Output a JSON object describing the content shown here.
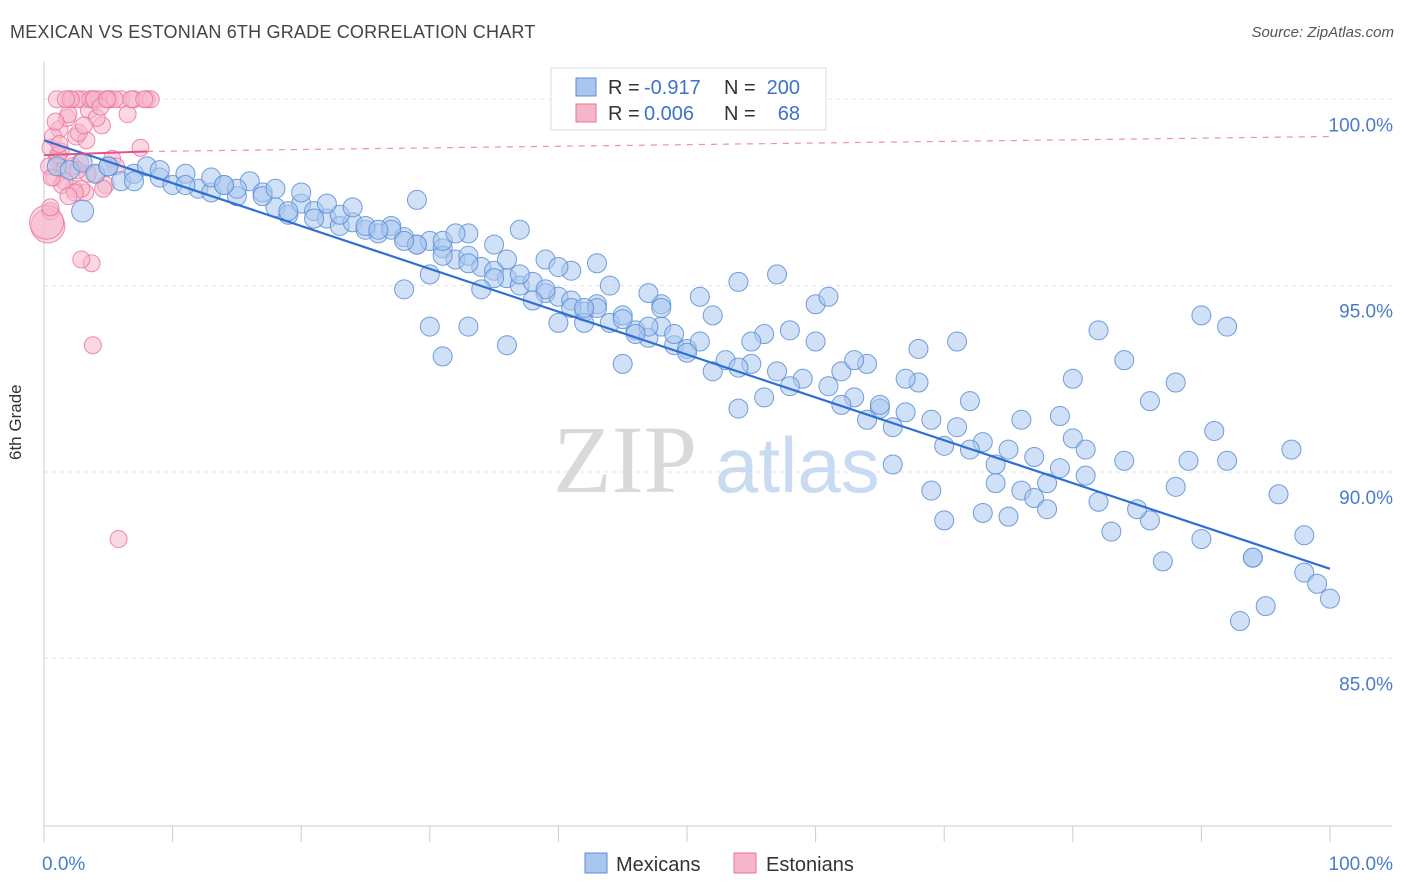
{
  "title": "MEXICAN VS ESTONIAN 6TH GRADE CORRELATION CHART",
  "source": "Source: ZipAtlas.com",
  "watermark": {
    "zip": "ZIP",
    "atlas": "atlas"
  },
  "colors": {
    "blue": "#5b8ed6",
    "blue_fill": "#a9c7ee",
    "pink": "#e8729a",
    "pink_fill": "#f6b6ca",
    "axis_text": "#4a7cc9"
  },
  "chart_data": {
    "type": "scatter",
    "title": "MEXICAN VS ESTONIAN 6TH GRADE CORRELATION CHART",
    "xlabel": "",
    "ylabel": "6th Grade",
    "xlim": [
      0,
      100
    ],
    "ylim": [
      80.5,
      101.0
    ],
    "x_tick_labels": [
      "0.0%",
      "100.0%"
    ],
    "y_ticks": [
      85,
      90,
      95,
      100
    ],
    "y_tick_labels": [
      "85.0%",
      "90.0%",
      "95.0%",
      "100.0%"
    ],
    "grid": true,
    "legend_position": "top-center",
    "series": [
      {
        "name": "Mexicans",
        "R": "-0.917",
        "N": "200",
        "trend": {
          "x0": 0,
          "y0": 98.9,
          "x1": 100,
          "y1": 87.4
        },
        "points": [
          [
            1,
            98.2
          ],
          [
            2,
            98.1
          ],
          [
            3,
            98.3
          ],
          [
            4,
            98.0
          ],
          [
            5,
            98.2
          ],
          [
            6,
            97.8
          ],
          [
            7,
            98.0
          ],
          [
            8,
            98.2
          ],
          [
            9,
            97.9
          ],
          [
            10,
            97.7
          ],
          [
            11,
            98.0
          ],
          [
            12,
            97.6
          ],
          [
            13,
            97.5
          ],
          [
            14,
            97.7
          ],
          [
            15,
            97.4
          ],
          [
            16,
            97.8
          ],
          [
            17,
            97.5
          ],
          [
            18,
            97.1
          ],
          [
            19,
            96.9
          ],
          [
            20,
            97.2
          ],
          [
            21,
            97.0
          ],
          [
            22,
            96.8
          ],
          [
            23,
            96.6
          ],
          [
            24,
            96.7
          ],
          [
            25,
            96.5
          ],
          [
            26,
            96.4
          ],
          [
            27,
            96.6
          ],
          [
            28,
            96.3
          ],
          [
            29,
            96.1
          ],
          [
            30,
            96.2
          ],
          [
            31,
            96.0
          ],
          [
            32,
            95.7
          ],
          [
            33,
            95.8
          ],
          [
            34,
            95.5
          ],
          [
            35,
            95.4
          ],
          [
            36,
            95.2
          ],
          [
            37,
            95.0
          ],
          [
            38,
            95.1
          ],
          [
            39,
            94.8
          ],
          [
            40,
            94.7
          ],
          [
            41,
            94.6
          ],
          [
            42,
            94.3
          ],
          [
            43,
            94.5
          ],
          [
            44,
            94.0
          ],
          [
            45,
            94.2
          ],
          [
            46,
            93.8
          ],
          [
            47,
            93.6
          ],
          [
            48,
            93.9
          ],
          [
            49,
            93.4
          ],
          [
            50,
            93.3
          ],
          [
            3,
            97.0
          ],
          [
            5,
            98.2
          ],
          [
            7,
            97.8
          ],
          [
            9,
            98.1
          ],
          [
            11,
            97.7
          ],
          [
            13,
            97.9
          ],
          [
            15,
            97.6
          ],
          [
            17,
            97.4
          ],
          [
            19,
            97.0
          ],
          [
            21,
            96.8
          ],
          [
            23,
            96.9
          ],
          [
            25,
            96.6
          ],
          [
            27,
            96.5
          ],
          [
            29,
            96.1
          ],
          [
            31,
            95.8
          ],
          [
            33,
            95.6
          ],
          [
            35,
            95.2
          ],
          [
            37,
            95.3
          ],
          [
            39,
            94.9
          ],
          [
            41,
            94.4
          ],
          [
            43,
            94.4
          ],
          [
            45,
            94.1
          ],
          [
            47,
            93.9
          ],
          [
            49,
            93.7
          ],
          [
            51,
            93.5
          ],
          [
            53,
            93.0
          ],
          [
            55,
            92.9
          ],
          [
            57,
            92.7
          ],
          [
            59,
            92.5
          ],
          [
            61,
            92.3
          ],
          [
            63,
            92.0
          ],
          [
            65,
            91.7
          ],
          [
            67,
            91.6
          ],
          [
            69,
            91.4
          ],
          [
            71,
            91.2
          ],
          [
            73,
            90.8
          ],
          [
            75,
            90.6
          ],
          [
            77,
            90.4
          ],
          [
            79,
            90.1
          ],
          [
            81,
            89.9
          ],
          [
            22,
            97.2
          ],
          [
            26,
            96.5
          ],
          [
            29,
            97.3
          ],
          [
            31,
            96.2
          ],
          [
            33,
            96.4
          ],
          [
            35,
            96.1
          ],
          [
            37,
            96.5
          ],
          [
            39,
            95.7
          ],
          [
            41,
            95.4
          ],
          [
            43,
            95.6
          ],
          [
            14,
            97.7
          ],
          [
            18,
            97.6
          ],
          [
            20,
            97.5
          ],
          [
            24,
            97.1
          ],
          [
            28,
            96.2
          ],
          [
            32,
            96.4
          ],
          [
            36,
            95.7
          ],
          [
            40,
            95.5
          ],
          [
            44,
            95.0
          ],
          [
            48,
            94.5
          ],
          [
            52,
            94.2
          ],
          [
            56,
            93.7
          ],
          [
            60,
            93.5
          ],
          [
            64,
            92.9
          ],
          [
            68,
            92.4
          ],
          [
            72,
            91.9
          ],
          [
            76,
            91.4
          ],
          [
            80,
            90.9
          ],
          [
            84,
            90.3
          ],
          [
            88,
            89.6
          ],
          [
            30,
            95.3
          ],
          [
            34,
            94.9
          ],
          [
            38,
            94.6
          ],
          [
            42,
            94.0
          ],
          [
            46,
            93.7
          ],
          [
            50,
            93.2
          ],
          [
            54,
            92.8
          ],
          [
            58,
            92.3
          ],
          [
            62,
            91.8
          ],
          [
            66,
            91.2
          ],
          [
            70,
            90.7
          ],
          [
            74,
            90.2
          ],
          [
            78,
            89.7
          ],
          [
            82,
            89.2
          ],
          [
            86,
            88.7
          ],
          [
            90,
            88.2
          ],
          [
            94,
            87.7
          ],
          [
            98,
            87.3
          ],
          [
            28,
            94.9
          ],
          [
            30,
            93.9
          ],
          [
            31,
            93.1
          ],
          [
            33,
            93.9
          ],
          [
            36,
            93.4
          ],
          [
            40,
            94.0
          ],
          [
            42,
            94.4
          ],
          [
            45,
            92.9
          ],
          [
            47,
            94.8
          ],
          [
            48,
            94.4
          ],
          [
            51,
            94.7
          ],
          [
            52,
            92.7
          ],
          [
            54,
            91.7
          ],
          [
            54,
            95.1
          ],
          [
            55,
            93.5
          ],
          [
            56,
            92.0
          ],
          [
            57,
            95.3
          ],
          [
            58,
            93.8
          ],
          [
            60,
            94.5
          ],
          [
            61,
            94.7
          ],
          [
            62,
            92.7
          ],
          [
            63,
            93.0
          ],
          [
            64,
            91.4
          ],
          [
            65,
            91.8
          ],
          [
            66,
            90.2
          ],
          [
            67,
            92.5
          ],
          [
            68,
            93.3
          ],
          [
            69,
            89.5
          ],
          [
            70,
            88.7
          ],
          [
            71,
            93.5
          ],
          [
            72,
            90.6
          ],
          [
            73,
            88.9
          ],
          [
            74,
            89.7
          ],
          [
            75,
            88.8
          ],
          [
            76,
            89.5
          ],
          [
            77,
            89.3
          ],
          [
            78,
            89.0
          ],
          [
            79,
            91.5
          ],
          [
            80,
            92.5
          ],
          [
            81,
            90.6
          ],
          [
            82,
            93.8
          ],
          [
            83,
            88.4
          ],
          [
            84,
            93.0
          ],
          [
            85,
            89.0
          ],
          [
            86,
            91.9
          ],
          [
            87,
            87.6
          ],
          [
            88,
            92.4
          ],
          [
            89,
            90.3
          ],
          [
            90,
            94.2
          ],
          [
            91,
            91.1
          ],
          [
            92,
            93.9
          ],
          [
            93,
            86.0
          ],
          [
            94,
            87.7
          ],
          [
            95,
            86.4
          ],
          [
            96,
            89.4
          ],
          [
            97,
            90.6
          ],
          [
            98,
            88.3
          ],
          [
            99,
            87.0
          ],
          [
            100,
            86.6
          ],
          [
            92,
            90.3
          ]
        ]
      },
      {
        "name": "Estonians",
        "R": "0.006",
        "N": "68",
        "trend_solid": {
          "x0": 0,
          "y0": 98.5,
          "x1": 8,
          "y1": 98.6
        },
        "trend_dashed": {
          "x0": 8,
          "y0": 98.6,
          "x1": 100,
          "y1": 99.0
        },
        "points": [
          [
            0.5,
            98.7
          ],
          [
            0.8,
            97.9
          ],
          [
            1,
            98.4
          ],
          [
            1.2,
            99.2
          ],
          [
            1.5,
            98.1
          ],
          [
            1.8,
            99.5
          ],
          [
            2,
            100
          ],
          [
            2.3,
            97.6
          ],
          [
            2.5,
            99.0
          ],
          [
            2.8,
            98.3
          ],
          [
            3,
            100
          ],
          [
            3.2,
            97.5
          ],
          [
            3.5,
            99.7
          ],
          [
            3.8,
            100
          ],
          [
            4,
            98.0
          ],
          [
            4.3,
            100
          ],
          [
            4.5,
            99.3
          ],
          [
            4.8,
            97.7
          ],
          [
            5,
            100
          ],
          [
            5.3,
            98.4
          ],
          [
            0.3,
            96.6
          ],
          [
            0.5,
            97.0
          ],
          [
            0.7,
            99.0
          ],
          [
            1,
            100
          ],
          [
            1.3,
            98.6
          ],
          [
            1.6,
            97.8
          ],
          [
            1.9,
            99.6
          ],
          [
            2.2,
            98.2
          ],
          [
            2.6,
            100
          ],
          [
            2.9,
            97.6
          ],
          [
            3.3,
            98.9
          ],
          [
            3.6,
            100
          ],
          [
            4.1,
            99.5
          ],
          [
            4.6,
            97.6
          ],
          [
            5.1,
            100
          ],
          [
            5.6,
            98.2
          ],
          [
            6,
            100
          ],
          [
            6.5,
            99.6
          ],
          [
            7,
            100
          ],
          [
            7.5,
            98.7
          ],
          [
            0.4,
            98.2
          ],
          [
            0.9,
            99.4
          ],
          [
            1.4,
            97.7
          ],
          [
            2.1,
            100
          ],
          [
            2.7,
            99.1
          ],
          [
            3.4,
            98.0
          ],
          [
            3.9,
            100
          ],
          [
            4.4,
            99.8
          ],
          [
            5.5,
            100
          ],
          [
            6.8,
            100
          ],
          [
            8,
            100
          ],
          [
            8.3,
            100
          ],
          [
            0.6,
            97.9
          ],
          [
            1.1,
            98.5
          ],
          [
            1.7,
            100
          ],
          [
            2.4,
            97.5
          ],
          [
            3.1,
            99.3
          ],
          [
            3.7,
            95.6
          ],
          [
            2.9,
            95.7
          ],
          [
            3.8,
            93.4
          ],
          [
            5.8,
            88.2
          ],
          [
            0.2,
            96.7
          ],
          [
            0.5,
            97.1
          ],
          [
            1.2,
            98.8
          ],
          [
            1.9,
            97.4
          ],
          [
            2.6,
            98.1
          ],
          [
            4.9,
            100
          ],
          [
            7.8,
            100
          ]
        ]
      }
    ]
  },
  "legend": {
    "rows": [
      {
        "r_label": "R = ",
        "r_value": "-0.917",
        "n_label": "N = ",
        "n_value": "200"
      },
      {
        "r_label": "R = ",
        "r_value": "0.006",
        "n_label": "N = ",
        "n_value": "68"
      }
    ]
  },
  "bottom_legend": [
    "Mexicans",
    "Estonians"
  ]
}
